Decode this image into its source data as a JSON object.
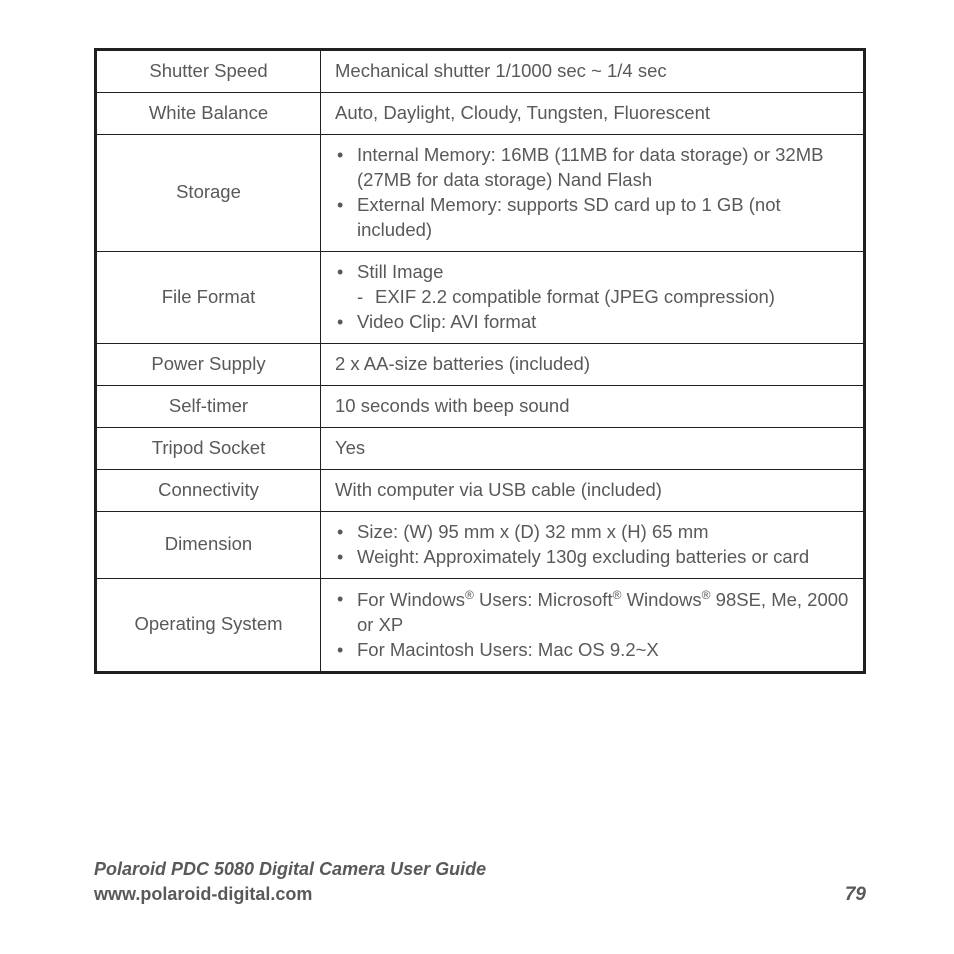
{
  "text_color": "#58595b",
  "border_color": "#231f20",
  "background_color": "#ffffff",
  "label_fontsize": 18.5,
  "value_fontsize": 18.5,
  "footer_fontsize": 18,
  "table": {
    "rows": [
      {
        "label": "Shutter Speed",
        "type": "plain",
        "value": "Mechanical shutter 1/1000 sec ~ 1/4 sec"
      },
      {
        "label": "White Balance",
        "type": "plain",
        "value": "Auto, Daylight, Cloudy, Tungsten, Fluorescent"
      },
      {
        "label": "Storage",
        "type": "bullets",
        "items": [
          {
            "text": "Internal Memory: 16MB (11MB for data storage) or 32MB (27MB for data storage) Nand Flash"
          },
          {
            "text": "External Memory: supports SD card up to 1 GB (not included)"
          }
        ]
      },
      {
        "label": "File Format",
        "type": "bullets",
        "items": [
          {
            "text": "Still Image",
            "sub": [
              "EXIF 2.2 compatible format (JPEG compression)"
            ]
          },
          {
            "text": "Video Clip: AVI format"
          }
        ]
      },
      {
        "label": "Power Supply",
        "type": "plain",
        "value": "2 x AA-size batteries (included)"
      },
      {
        "label": "Self-timer",
        "type": "plain",
        "value": "10 seconds with beep sound"
      },
      {
        "label": "Tripod Socket",
        "type": "plain",
        "value": "Yes"
      },
      {
        "label": "Connectivity",
        "type": "plain",
        "value": "With computer via USB cable (included)"
      },
      {
        "label": "Dimension",
        "type": "bullets",
        "items": [
          {
            "text": "Size: (W) 95 mm x (D) 32 mm x (H) 65 mm"
          },
          {
            "text": "Weight: Approximately 130g excluding batteries or card"
          }
        ]
      },
      {
        "label": "Operating System",
        "type": "bullets",
        "items": [
          {
            "html": "For Windows<sup>®</sup> Users: Microsoft<sup>®</sup> Windows<sup>®</sup> 98SE, Me, 2000 or  XP"
          },
          {
            "text": "For Macintosh Users: Mac OS 9.2~X"
          }
        ]
      }
    ]
  },
  "footer": {
    "title": "Polaroid PDC 5080 Digital Camera User Guide",
    "url": "www.polaroid-digital.com",
    "page": "79"
  }
}
